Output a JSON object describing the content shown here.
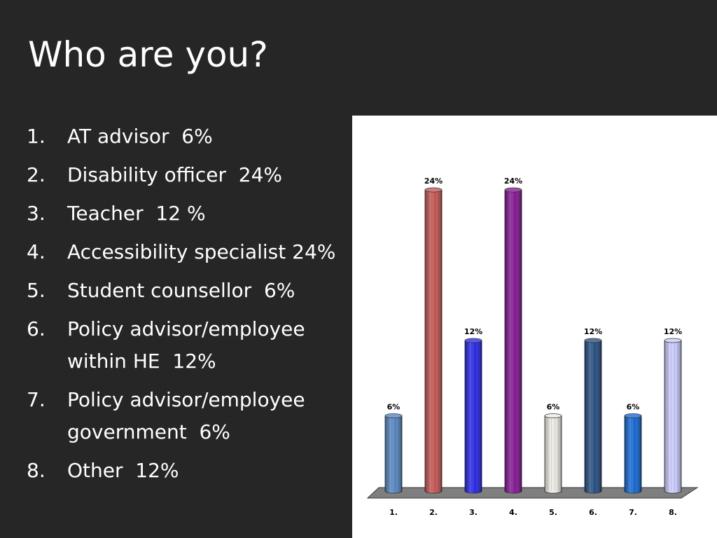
{
  "slide": {
    "title": "Who are you?"
  },
  "list": {
    "items": [
      {
        "num": "1.",
        "text": "AT advisor  6%"
      },
      {
        "num": "2.",
        "text": "Disability officer  24%"
      },
      {
        "num": "3.",
        "text": "Teacher  12 %"
      },
      {
        "num": "4.",
        "text": "Accessibility specialist 24%"
      },
      {
        "num": "5.",
        "text": "Student counsellor  6%"
      },
      {
        "num": "6.",
        "text": "Policy advisor/employee within HE  12%"
      },
      {
        "num": "7.",
        "text": "Policy advisor/employee government  6%"
      },
      {
        "num": "8.",
        "text": "Other  12%"
      }
    ]
  },
  "chart_data": {
    "type": "bar",
    "style": "3d-cylinder",
    "categories": [
      "1.",
      "2.",
      "3.",
      "4.",
      "5.",
      "6.",
      "7.",
      "8."
    ],
    "values": [
      6,
      24,
      12,
      24,
      6,
      12,
      6,
      12
    ],
    "data_labels": [
      "6%",
      "24%",
      "12%",
      "24%",
      "6%",
      "12%",
      "6%",
      "12%"
    ],
    "colors": [
      "#4f81bd",
      "#c0504d",
      "#1f1fe6",
      "#7f0f8f",
      "#ebe9e0",
      "#1f497d",
      "#0b63d4",
      "#c7c9fb"
    ],
    "floor_color": "#7f7f7f",
    "ylim": [
      0,
      24
    ],
    "grid": false,
    "legend": "none"
  }
}
